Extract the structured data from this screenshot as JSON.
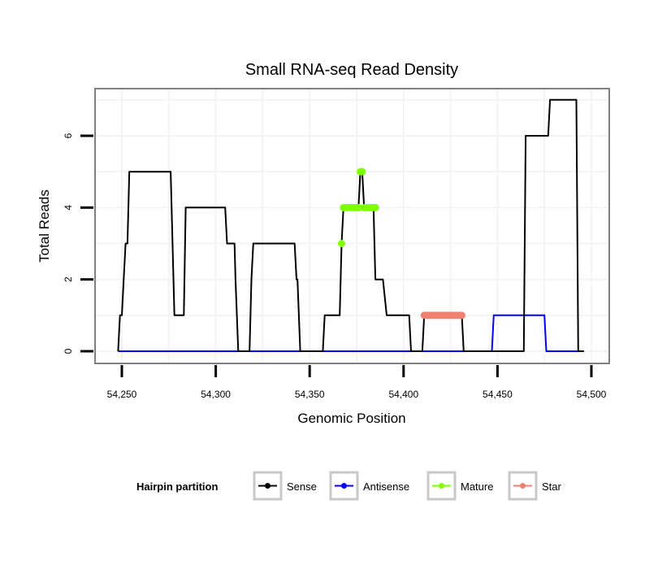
{
  "chart_data": {
    "type": "line",
    "title": "Small RNA-seq Read Density",
    "xlabel": "Genomic Position",
    "ylabel": "Total Reads",
    "xlim": [
      54236,
      54511
    ],
    "ylim": [
      -0.35,
      7.35
    ],
    "x_ticks": [
      54250,
      54300,
      54350,
      54400,
      54450,
      54500
    ],
    "x_tick_labels": [
      "54,250",
      "54,300",
      "54,350",
      "54,400",
      "54,450",
      "54,500"
    ],
    "y_ticks": [
      0,
      2,
      4,
      6
    ],
    "y_tick_labels": [
      "0",
      "2",
      "4",
      "6"
    ],
    "x_minor": [
      54275,
      54325,
      54375,
      54425,
      54475
    ],
    "y_minor": [
      1,
      3,
      5,
      7
    ],
    "grid": true,
    "legend": {
      "title": "Hairpin partition",
      "position": "bottom"
    },
    "series": [
      {
        "name": "Sense",
        "color": "#000000",
        "style": "line",
        "x": [
          54248,
          54249,
          54250,
          54252,
          54253,
          54254,
          54276,
          54278,
          54283,
          54284,
          54305,
          54306,
          54310,
          54310.5,
          54312,
          54318,
          54319,
          54320,
          54342,
          54343,
          54343.5,
          54345,
          54357,
          54358,
          54366,
          54367,
          54368,
          54376,
          54377,
          54378,
          54379,
          54384,
          54385,
          54389,
          54391,
          54403,
          54404,
          54410,
          54411,
          54431,
          54432,
          54464,
          54465,
          54477,
          54478,
          54492,
          54493,
          54496
        ],
        "y": [
          0,
          1,
          1,
          3,
          3,
          5,
          5,
          1,
          1,
          4,
          4,
          3,
          3,
          2,
          0,
          0,
          2,
          3,
          3,
          2,
          2,
          0,
          0,
          1,
          1,
          3,
          4,
          4,
          5,
          5,
          4,
          4,
          2,
          2,
          1,
          1,
          0,
          0,
          1,
          1,
          0,
          0,
          6,
          6,
          7,
          7,
          0,
          0
        ]
      },
      {
        "name": "Antisense",
        "color": "#0000ff",
        "style": "line",
        "x": [
          54248,
          54447,
          54448,
          54475,
          54476,
          54496
        ],
        "y": [
          0,
          0,
          1,
          1,
          0,
          0
        ]
      },
      {
        "name": "Mature",
        "color": "#7fff00",
        "style": "points",
        "x": [
          54367,
          54368,
          54369,
          54370,
          54371,
          54372,
          54373,
          54374,
          54375,
          54376,
          54377,
          54378,
          54379,
          54380,
          54381,
          54382,
          54383,
          54384,
          54385
        ],
        "y": [
          3,
          4,
          4,
          4,
          4,
          4,
          4,
          4,
          4,
          4,
          5,
          5,
          4,
          4,
          4,
          4,
          4,
          4,
          4
        ]
      },
      {
        "name": "Star",
        "color": "#f08070",
        "style": "points",
        "x": [
          54411,
          54412,
          54413,
          54414,
          54415,
          54416,
          54417,
          54418,
          54419,
          54420,
          54421,
          54422,
          54423,
          54424,
          54425,
          54426,
          54427,
          54428,
          54429,
          54430,
          54431
        ],
        "y": [
          1,
          1,
          1,
          1,
          1,
          1,
          1,
          1,
          1,
          1,
          1,
          1,
          1,
          1,
          1,
          1,
          1,
          1,
          1,
          1,
          1
        ]
      }
    ]
  }
}
